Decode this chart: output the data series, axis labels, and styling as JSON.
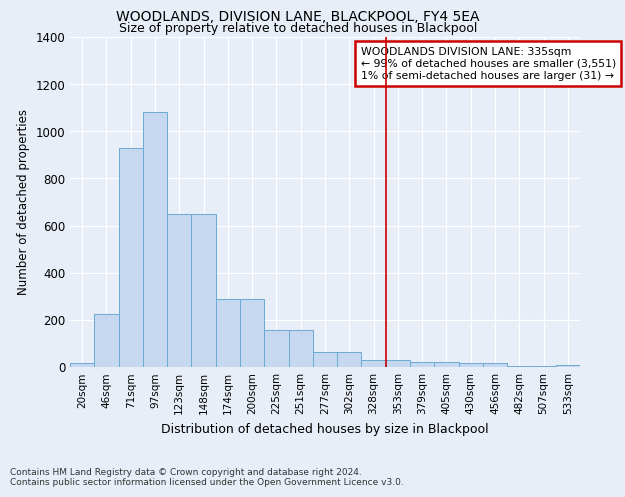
{
  "title": "WOODLANDS, DIVISION LANE, BLACKPOOL, FY4 5EA",
  "subtitle": "Size of property relative to detached houses in Blackpool",
  "xlabel": "Distribution of detached houses by size in Blackpool",
  "ylabel": "Number of detached properties",
  "categories": [
    "20sqm",
    "46sqm",
    "71sqm",
    "97sqm",
    "123sqm",
    "148sqm",
    "174sqm",
    "200sqm",
    "225sqm",
    "251sqm",
    "277sqm",
    "302sqm",
    "328sqm",
    "353sqm",
    "379sqm",
    "405sqm",
    "430sqm",
    "456sqm",
    "482sqm",
    "507sqm",
    "533sqm"
  ],
  "values": [
    15,
    225,
    930,
    1080,
    650,
    650,
    290,
    290,
    155,
    155,
    65,
    65,
    30,
    30,
    20,
    20,
    15,
    15,
    5,
    5,
    10
  ],
  "bar_color": "#c5d8f0",
  "bar_edge_color": "#6aaad4",
  "bg_color": "#e8eef8",
  "grid_color": "#ffffff",
  "vline_color": "#cc0000",
  "legend_title": "WOODLANDS DIVISION LANE: 335sqm",
  "legend_line1": "← 99% of detached houses are smaller (3,551)",
  "legend_line2": "1% of semi-detached houses are larger (31) →",
  "legend_box_color": "#cc0000",
  "footnote1": "Contains HM Land Registry data © Crown copyright and database right 2024.",
  "footnote2": "Contains public sector information licensed under the Open Government Licence v3.0.",
  "ylim": [
    0,
    1400
  ],
  "yticks": [
    0,
    200,
    400,
    600,
    800,
    1000,
    1200,
    1400
  ]
}
